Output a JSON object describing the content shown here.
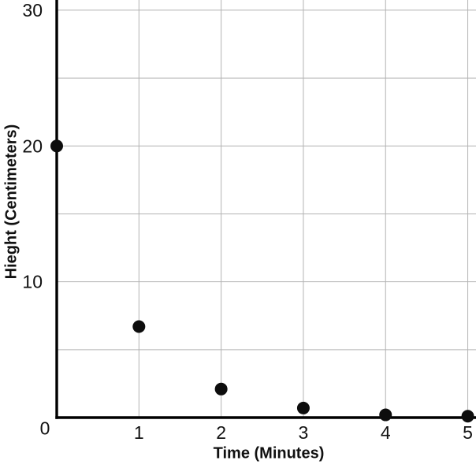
{
  "chart_data": {
    "type": "scatter",
    "title": "",
    "xlabel": "Time (Minutes)",
    "ylabel": "Hieght (Centimeters)",
    "x": [
      0,
      1,
      2,
      3,
      4,
      5
    ],
    "y": [
      20,
      6.7,
      2.1,
      0.7,
      0.2,
      0.1
    ],
    "xlim": [
      0,
      5.1
    ],
    "ylim": [
      0,
      30.75
    ],
    "x_grid_step": 1,
    "y_grid_step": 5,
    "x_tick_values": [
      1,
      2,
      3,
      4,
      5
    ],
    "x_tick_labels": [
      "1",
      "2",
      "3",
      "4",
      "5"
    ],
    "y_tick_values": [
      10,
      20,
      30
    ],
    "y_tick_labels": [
      "10",
      "20",
      "30"
    ],
    "origin_label": "0",
    "grid": true,
    "legend": "none",
    "point_radius_px": 8,
    "colors": {
      "background": "#ffffff",
      "gridline": "#b3b3b3",
      "axis": "#000000",
      "point": "#0d0d0d",
      "text": "#111111"
    }
  }
}
